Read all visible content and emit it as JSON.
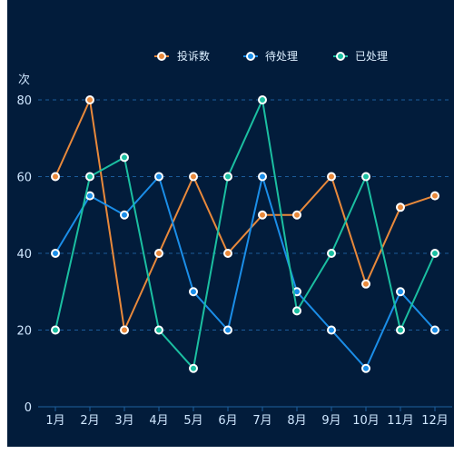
{
  "chart_data": {
    "type": "line",
    "ylabel": "次",
    "categories": [
      "1月",
      "2月",
      "3月",
      "4月",
      "5月",
      "6月",
      "7月",
      "8月",
      "9月",
      "10月",
      "11月",
      "12月"
    ],
    "ylim": [
      0,
      80
    ],
    "y_ticks": [
      "0",
      "20",
      "40",
      "60",
      "80"
    ],
    "grid": true,
    "legend_position": "top-center",
    "series": [
      {
        "name": "投诉数",
        "color": "#e9893b",
        "values": [
          60,
          80,
          20,
          40,
          60,
          40,
          50,
          50,
          60,
          32,
          52,
          55
        ]
      },
      {
        "name": "待处理",
        "color": "#1b8ee8",
        "values": [
          40,
          55,
          50,
          60,
          30,
          20,
          60,
          30,
          20,
          10,
          30,
          20
        ]
      },
      {
        "name": "已处理",
        "color": "#1bbfa1",
        "values": [
          20,
          60,
          65,
          20,
          10,
          60,
          80,
          25,
          40,
          60,
          20,
          40
        ]
      }
    ]
  }
}
